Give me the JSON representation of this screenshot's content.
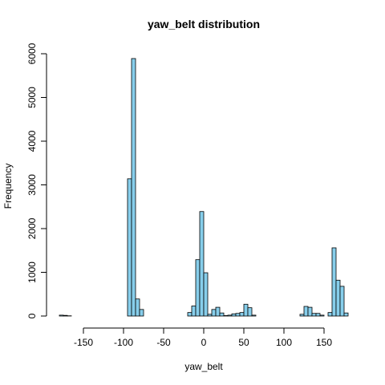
{
  "chart_data": {
    "type": "bar",
    "title": "yaw_belt distribution",
    "xlabel": "yaw_belt",
    "ylabel": "Frequency",
    "bin_width": 5,
    "xlim": [
      -180,
      180
    ],
    "ylim": [
      0,
      6000
    ],
    "xticks": [
      -150,
      -100,
      -50,
      0,
      50,
      100,
      150
    ],
    "yticks": [
      0,
      1000,
      2000,
      3000,
      4000,
      5000,
      6000
    ],
    "grid": false,
    "bar_color": "#87ceeb",
    "bars": [
      {
        "x0": -180,
        "count": 20
      },
      {
        "x0": -175,
        "count": 15
      },
      {
        "x0": -170,
        "count": 5
      },
      {
        "x0": -165,
        "count": 0
      },
      {
        "x0": -160,
        "count": 0
      },
      {
        "x0": -155,
        "count": 0
      },
      {
        "x0": -150,
        "count": 0
      },
      {
        "x0": -145,
        "count": 0
      },
      {
        "x0": -140,
        "count": 0
      },
      {
        "x0": -135,
        "count": 0
      },
      {
        "x0": -130,
        "count": 0
      },
      {
        "x0": -125,
        "count": 0
      },
      {
        "x0": -120,
        "count": 0
      },
      {
        "x0": -115,
        "count": 0
      },
      {
        "x0": -110,
        "count": 0
      },
      {
        "x0": -105,
        "count": 0
      },
      {
        "x0": -100,
        "count": 0
      },
      {
        "x0": -95,
        "count": 3140
      },
      {
        "x0": -90,
        "count": 5890
      },
      {
        "x0": -85,
        "count": 390
      },
      {
        "x0": -80,
        "count": 150
      },
      {
        "x0": -75,
        "count": 0
      },
      {
        "x0": -70,
        "count": 0
      },
      {
        "x0": -65,
        "count": 0
      },
      {
        "x0": -60,
        "count": 0
      },
      {
        "x0": -55,
        "count": 0
      },
      {
        "x0": -50,
        "count": 0
      },
      {
        "x0": -45,
        "count": 0
      },
      {
        "x0": -40,
        "count": 0
      },
      {
        "x0": -35,
        "count": 0
      },
      {
        "x0": -30,
        "count": 0
      },
      {
        "x0": -25,
        "count": 0
      },
      {
        "x0": -20,
        "count": 80
      },
      {
        "x0": -15,
        "count": 230
      },
      {
        "x0": -10,
        "count": 1290
      },
      {
        "x0": -5,
        "count": 2390
      },
      {
        "x0": 0,
        "count": 990
      },
      {
        "x0": 5,
        "count": 40
      },
      {
        "x0": 10,
        "count": 150
      },
      {
        "x0": 15,
        "count": 200
      },
      {
        "x0": 20,
        "count": 70
      },
      {
        "x0": 25,
        "count": 10
      },
      {
        "x0": 30,
        "count": 20
      },
      {
        "x0": 35,
        "count": 50
      },
      {
        "x0": 40,
        "count": 60
      },
      {
        "x0": 45,
        "count": 80
      },
      {
        "x0": 50,
        "count": 270
      },
      {
        "x0": 55,
        "count": 190
      },
      {
        "x0": 60,
        "count": 20
      },
      {
        "x0": 65,
        "count": 0
      },
      {
        "x0": 70,
        "count": 0
      },
      {
        "x0": 75,
        "count": 0
      },
      {
        "x0": 80,
        "count": 0
      },
      {
        "x0": 85,
        "count": 0
      },
      {
        "x0": 90,
        "count": 0
      },
      {
        "x0": 95,
        "count": 0
      },
      {
        "x0": 100,
        "count": 0
      },
      {
        "x0": 105,
        "count": 0
      },
      {
        "x0": 110,
        "count": 0
      },
      {
        "x0": 115,
        "count": 0
      },
      {
        "x0": 120,
        "count": 40
      },
      {
        "x0": 125,
        "count": 220
      },
      {
        "x0": 130,
        "count": 200
      },
      {
        "x0": 135,
        "count": 60
      },
      {
        "x0": 140,
        "count": 60
      },
      {
        "x0": 145,
        "count": 20
      },
      {
        "x0": 150,
        "count": 0
      },
      {
        "x0": 155,
        "count": 80
      },
      {
        "x0": 160,
        "count": 1560
      },
      {
        "x0": 165,
        "count": 820
      },
      {
        "x0": 170,
        "count": 680
      },
      {
        "x0": 175,
        "count": 70
      }
    ]
  }
}
